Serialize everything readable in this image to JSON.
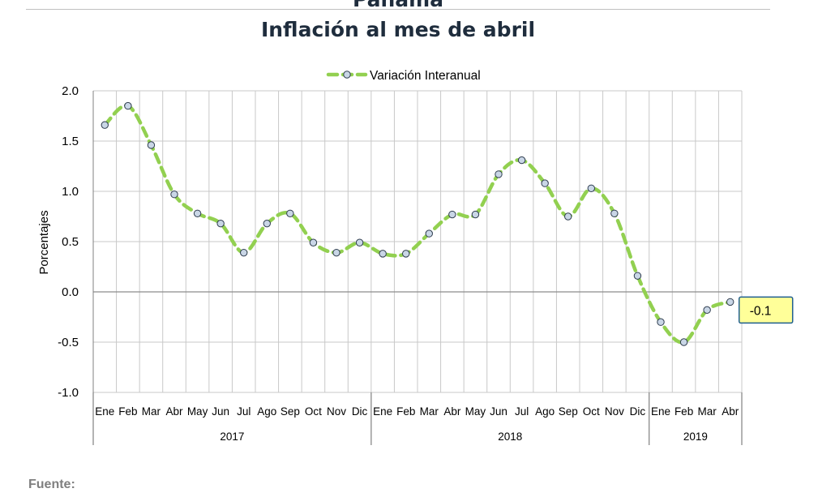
{
  "header": {
    "cut_title": "Panamá",
    "title": "Inflación al mes de abril"
  },
  "source": "Fuente:",
  "chart_data": {
    "type": "line",
    "title": "Inflación al mes de abril",
    "ylabel": "Porcentajes",
    "xlabel": "",
    "ylim": [
      -1.0,
      2.0
    ],
    "ytick_step": 0.5,
    "grid": true,
    "legend_position": "top-center",
    "categories": [
      "Ene",
      "Feb",
      "Mar",
      "Abr",
      "May",
      "Jun",
      "Jul",
      "Ago",
      "Sep",
      "Oct",
      "Nov",
      "Dic",
      "Ene",
      "Feb",
      "Mar",
      "Abr",
      "May",
      "Jun",
      "Jul",
      "Ago",
      "Sep",
      "Oct",
      "Nov",
      "Dic",
      "Ene",
      "Feb",
      "Mar",
      "Abr"
    ],
    "year_groups": [
      {
        "label": "2017",
        "count": 12
      },
      {
        "label": "2018",
        "count": 12
      },
      {
        "label": "2019",
        "count": 4
      }
    ],
    "series": [
      {
        "name": "Variación Interanual",
        "color": "#92d050",
        "marker_fill": "#c9d6e6",
        "marker_stroke": "#2f3d4f",
        "values": [
          1.66,
          1.85,
          1.46,
          0.97,
          0.78,
          0.68,
          0.39,
          0.68,
          0.78,
          0.49,
          0.39,
          0.49,
          0.38,
          0.38,
          0.58,
          0.77,
          0.77,
          1.17,
          1.31,
          1.08,
          0.75,
          1.03,
          0.78,
          0.16,
          -0.3,
          -0.5,
          -0.18,
          -0.1
        ]
      }
    ],
    "data_label": {
      "text": "-0.1",
      "point_index": 27,
      "fill": "#ffff99",
      "border": "#1f5f8f"
    },
    "colors": {
      "grid": "#c8c8c8",
      "axis": "#808080",
      "text": "#000000"
    }
  }
}
